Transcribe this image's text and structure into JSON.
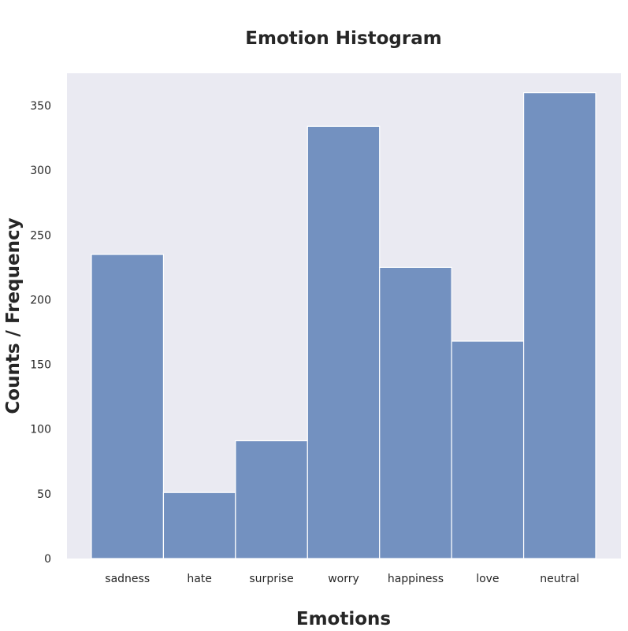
{
  "chart_data": {
    "type": "bar",
    "title": "Emotion Histogram",
    "xlabel": "Emotions",
    "ylabel": "Counts / Frequency",
    "categories": [
      "sadness",
      "hate",
      "surprise",
      "worry",
      "happiness",
      "love",
      "neutral"
    ],
    "values": [
      235,
      51,
      91,
      334,
      225,
      168,
      360
    ],
    "ylim": [
      0,
      375
    ],
    "yticks": [
      "0",
      "50",
      "100",
      "150",
      "200",
      "250",
      "300",
      "350"
    ],
    "grid": false,
    "legend": "none",
    "colors": {
      "plot_background": "#eaeaf2",
      "bar_fill": "#7391c0",
      "bar_edge": "#ffffff",
      "text": "#262626"
    }
  }
}
